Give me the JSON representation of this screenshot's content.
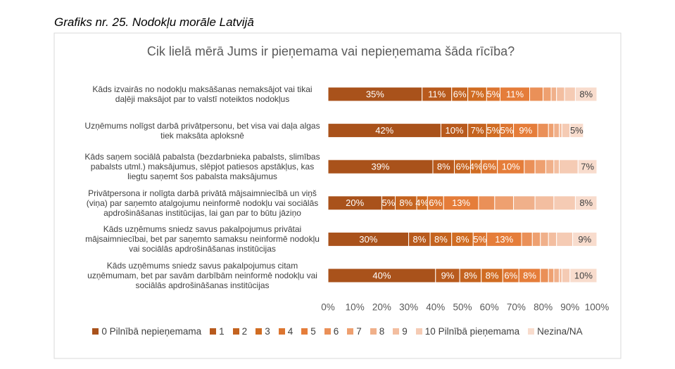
{
  "caption": "Grafiks nr. 25. Nodokļu morāle Latvijā",
  "chart_data": {
    "type": "stacked-barh",
    "title": "Cik lielā mērā Jums ir pieņemama vai nepieņemama šāda rīcība?",
    "categories": [
      "Kāds izvairās no nodokļu maksāšanas nemaksājot vai tikai daļēji maksājot par to valstī noteiktos nodokļus",
      "Uzņēmums nolīgst darbā privātpersonu, bet visa vai daļa algas tiek maksāta aploksnē",
      "Kāds saņem sociālā pabalsta (bezdarbnieka pabalsts, slimības pabalsts utml.) maksājumus, slēpjot patiesos apstākļus, kas liegtu saņemt šos pabalsta maksājumus",
      "Privātpersona ir nolīgta darbā privātā mājsaimniecībā un viņš (viņa) par saņemto atalgojumu neinformē nodokļu vai sociālās apdrošināšanas institūcijas, lai gan par to būtu jāziņo",
      "Kāds uzņēmums sniedz savus pakalpojumus privātai mājsaimniecībai, bet par saņemto samaksu neinformē nodokļu vai sociālās apdrošināšanas institūcijas",
      "Kāds uzņēmums sniedz savus pakalpojumus citam uzņēmumam, bet par savām darbībām neinformē nodokļu vai sociālās apdrošināšanas institūcijas"
    ],
    "series": [
      {
        "name": "0 Pilnībā nepieņemama",
        "color": "#a9521b",
        "values": [
          35,
          42,
          39,
          20,
          30,
          40
        ],
        "value_labels": [
          "35%",
          "42%",
          "39%",
          "20%",
          "30%",
          "40%"
        ]
      },
      {
        "name": "1",
        "color": "#b85a1d",
        "values": [
          11,
          10,
          8,
          5,
          8,
          9
        ],
        "value_labels": [
          "11%",
          "10%",
          "8%",
          "5%",
          "8%",
          "9%"
        ]
      },
      {
        "name": "2",
        "color": "#c4631f",
        "values": [
          6,
          7,
          6,
          8,
          8,
          8
        ],
        "value_labels": [
          "6%",
          "7%",
          "6%",
          "8%",
          "8%",
          "8%"
        ]
      },
      {
        "name": "3",
        "color": "#d06c22",
        "values": [
          7,
          5,
          4,
          4,
          8,
          8
        ],
        "value_labels": [
          "7%",
          "5%",
          "4%",
          "4%",
          "8%",
          "8%"
        ]
      },
      {
        "name": "4",
        "color": "#dc7530",
        "values": [
          5,
          5,
          6,
          6,
          5,
          6
        ],
        "value_labels": [
          "5%",
          "5%",
          "6%",
          "6%",
          "5%",
          "6%"
        ]
      },
      {
        "name": "5",
        "color": "#e57d3a",
        "values": [
          11,
          9,
          10,
          13,
          13,
          8
        ],
        "value_labels": [
          "11%",
          "9%",
          "10%",
          "13%",
          "13%",
          "8%"
        ]
      },
      {
        "name": "6",
        "color": "#ea9058",
        "values": [
          5,
          4,
          4,
          6,
          4,
          3
        ],
        "value_labels": [
          null,
          null,
          null,
          null,
          null,
          null
        ]
      },
      {
        "name": "7",
        "color": "#eea070",
        "values": [
          3,
          2,
          4,
          7,
          3,
          2
        ],
        "value_labels": [
          null,
          null,
          null,
          null,
          null,
          null
        ]
      },
      {
        "name": "8",
        "color": "#f0b08a",
        "values": [
          2,
          2,
          3,
          8,
          3,
          2
        ],
        "value_labels": [
          null,
          null,
          null,
          null,
          null,
          null
        ]
      },
      {
        "name": "9",
        "color": "#f3bea0",
        "values": [
          3,
          1,
          2,
          7,
          3,
          1
        ],
        "value_labels": [
          null,
          null,
          null,
          null,
          null,
          null
        ]
      },
      {
        "name": "10 Pilnībā pieņemama",
        "color": "#f5cbb4",
        "values": [
          4,
          3,
          7,
          8,
          6,
          3
        ],
        "value_labels": [
          null,
          null,
          null,
          null,
          null,
          null
        ]
      },
      {
        "name": "Nezina/NA",
        "color": "#f8dccd",
        "values": [
          8,
          5,
          7,
          8,
          9,
          10
        ],
        "value_labels": [
          "8%",
          "5%",
          "7%",
          "8%",
          "9%",
          "10%"
        ]
      }
    ],
    "xlim": [
      0,
      100
    ],
    "xticks": [
      {
        "value": 0,
        "label": "0%"
      },
      {
        "value": 10,
        "label": "10%"
      },
      {
        "value": 20,
        "label": "20%"
      },
      {
        "value": 30,
        "label": "30%"
      },
      {
        "value": 40,
        "label": "40%"
      },
      {
        "value": 50,
        "label": "50%"
      },
      {
        "value": 60,
        "label": "60%"
      },
      {
        "value": 70,
        "label": "70%"
      },
      {
        "value": 80,
        "label": "80%"
      },
      {
        "value": 90,
        "label": "90%"
      },
      {
        "value": 100,
        "label": "100%"
      }
    ],
    "legend": "bottom"
  }
}
